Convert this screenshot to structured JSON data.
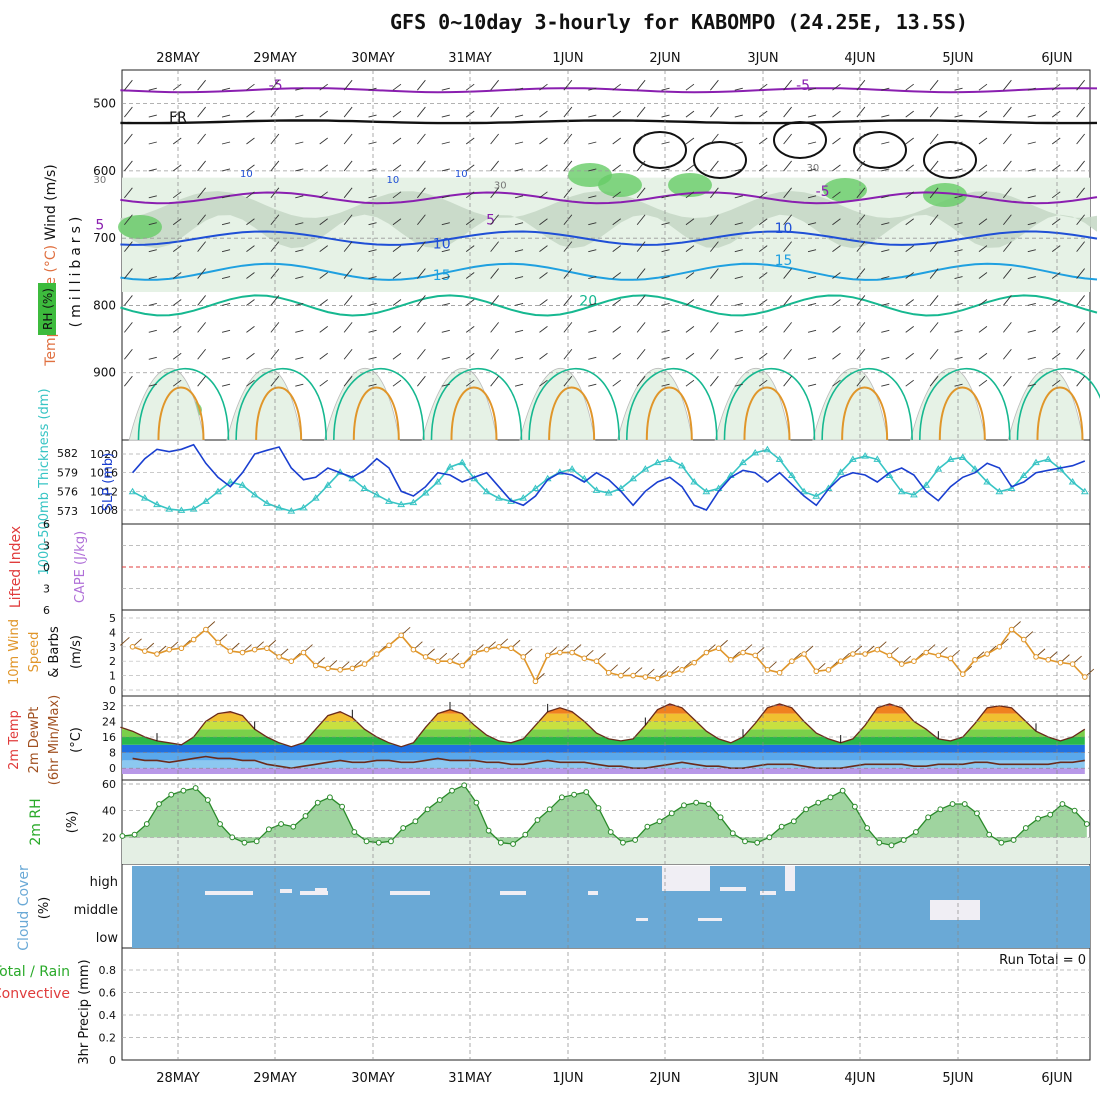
{
  "title": "GFS 0~10day 3-hourly for KABOMPO (24.25E, 13.5S)",
  "date_labels": [
    "28MAY",
    "29MAY",
    "30MAY",
    "31MAY",
    "1JUN",
    "2JUN",
    "3JUN",
    "4JUN",
    "5JUN",
    "6JUN"
  ],
  "colors": {
    "rh_light": "#e6f2e6",
    "rh_mid": "#c6d8c6",
    "rh_dark": "#a9bfa9",
    "rh_green": "#66cc66",
    "temp_purple": "#8a1fb0",
    "temp_blue": "#1f4fd6",
    "temp_cyan": "#1fa0e0",
    "temp_teal": "#16b890",
    "temp_orange": "#e0962a",
    "temp_magenta": "#e0208a",
    "slp": "#1a3fd0",
    "thick": "#37c4c4",
    "wind10": "#e0962a",
    "li": "#e03c3c",
    "cape": "#b070d8",
    "cloud": "#6aa9d6"
  },
  "chart_data": [
    {
      "type": "heatmap",
      "panel": "upper-air",
      "ylabel_parts": [
        "Wind (m/s)",
        "Temperature (°C)",
        "RH (%)",
        "(millibars)"
      ],
      "yticks": [
        500,
        600,
        700,
        800,
        900
      ],
      "ylim": [
        1000,
        450
      ],
      "contour_labels": [
        {
          "text": "-5",
          "x": "29.0",
          "p": 480
        },
        {
          "text": "-5",
          "x": "3.4",
          "p": 480
        },
        {
          "text": "FR",
          "x": "28.0",
          "p": 527
        },
        {
          "text": "-5",
          "x": "3.6",
          "p": 637
        },
        {
          "text": "5",
          "x": "27.2",
          "p": 687
        },
        {
          "text": "5",
          "x": "31.2",
          "p": 680
        },
        {
          "text": "10",
          "x": "30.7",
          "p": 715
        },
        {
          "text": "10",
          "x": "3.2",
          "p": 692
        },
        {
          "text": "15",
          "x": "30.7",
          "p": 762
        },
        {
          "text": "15",
          "x": "3.2",
          "p": 740
        },
        {
          "text": "20",
          "x": "1.2",
          "p": 800
        },
        {
          "text": "10",
          "x": "28.7",
          "p": 609
        },
        {
          "text": "30",
          "x": "27.2",
          "p": 618
        },
        {
          "text": "10",
          "x": "30.9",
          "p": 609
        },
        {
          "text": "30",
          "x": "31.3",
          "p": 626
        },
        {
          "text": "30",
          "x": "3.5",
          "p": 600
        },
        {
          "text": "10",
          "x": "30.2",
          "p": 618
        }
      ]
    },
    {
      "type": "line",
      "panel": "slp-thickness",
      "ylabel_left": "1000-500mb Thickness (dm)",
      "ylabel_right": "SLP (mb)",
      "thickness_ticks": [
        573,
        576,
        579,
        582
      ],
      "slp_ticks": [
        1008,
        1012,
        1016,
        1020
      ],
      "series": [
        {
          "name": "SLP (mb)",
          "values": [
            1014.5,
            1016,
            1019,
            1021,
            1020.5,
            1021,
            1022,
            1018,
            1015,
            1013,
            1016,
            1020,
            1020.8,
            1021.5,
            1017,
            1014.5,
            1015,
            1017,
            1016,
            1015,
            1016.5,
            1019,
            1017,
            1012,
            1011,
            1013,
            1016,
            1015.5,
            1014,
            1015,
            1016,
            1013,
            1010,
            1009,
            1011,
            1014.5,
            1016,
            1015.5,
            1014,
            1016,
            1014.5,
            1012,
            1009,
            1012,
            1014,
            1015,
            1013,
            1009,
            1008,
            1012,
            1015,
            1016.5,
            1016,
            1014,
            1016,
            1013.5,
            1011,
            1009,
            1012.5,
            1015,
            1016,
            1015.5,
            1014,
            1016,
            1017,
            1015.5,
            1012,
            1010,
            1013,
            1015,
            1016,
            1018,
            1017,
            1013,
            1014,
            1016,
            1016.5,
            1017,
            1017.5,
            1018.5
          ]
        },
        {
          "name": "Thickness (dm)",
          "values": [
            576.5,
            576,
            575,
            574,
            573.3,
            573.1,
            573.3,
            574.5,
            576,
            577.5,
            577,
            575.5,
            574.2,
            573.5,
            573,
            573.5,
            575,
            577,
            579,
            578,
            576.5,
            575.5,
            574.5,
            574,
            574.3,
            575.8,
            577.5,
            579.8,
            580.5,
            578,
            576,
            575,
            574.5,
            575,
            576.5,
            578,
            579,
            579.5,
            578,
            576.2,
            575.8,
            576.5,
            578,
            579.5,
            580.5,
            581,
            580,
            577.5,
            576,
            576.5,
            578.5,
            580.5,
            582,
            582.5,
            581,
            578.5,
            576,
            575.3,
            576.5,
            579,
            581,
            581.5,
            581,
            578.5,
            576,
            575.5,
            577,
            579.5,
            581,
            581.3,
            579.5,
            577.5,
            576,
            576.5,
            578.5,
            580.5,
            581,
            579.5,
            577.5,
            576
          ]
        }
      ]
    },
    {
      "type": "line",
      "panel": "stability",
      "ylabel_parts": [
        "Lifted Index",
        "CAPE (J/kg)"
      ],
      "yticks": [
        -6,
        -3,
        0,
        3,
        6
      ],
      "li_values": [],
      "cape_values": []
    },
    {
      "type": "line",
      "panel": "wind10m",
      "ylabel_parts": [
        "10m Wind",
        "Speed",
        "& Barbs",
        "(m/s)"
      ],
      "yticks": [
        0,
        1,
        2,
        3,
        4,
        5
      ],
      "series": [
        {
          "name": "10m Wind Speed",
          "values": [
            3.1,
            3.0,
            2.7,
            2.5,
            2.8,
            2.9,
            3.5,
            4.2,
            3.3,
            2.7,
            2.6,
            2.8,
            2.9,
            2.3,
            2.0,
            2.6,
            1.7,
            1.5,
            1.4,
            1.5,
            1.8,
            2.5,
            3.1,
            3.8,
            2.8,
            2.3,
            2.0,
            2.0,
            1.7,
            2.6,
            2.8,
            3.0,
            2.9,
            2.3,
            0.6,
            2.4,
            2.6,
            2.6,
            2.2,
            2.0,
            1.2,
            1.0,
            1.0,
            0.9,
            0.8,
            1.1,
            1.4,
            1.9,
            2.6,
            2.9,
            2.1,
            2.6,
            2.4,
            1.4,
            1.2,
            2.0,
            2.5,
            1.3,
            1.4,
            2.0,
            2.5,
            2.5,
            2.8,
            2.4,
            1.8,
            2.0,
            2.6,
            2.4,
            2.2,
            1.1,
            2.1,
            2.5,
            3.0,
            4.2,
            3.5,
            2.3,
            2.1,
            1.9,
            1.8,
            0.9,
            2.0,
            3.6
          ]
        }
      ]
    },
    {
      "type": "area",
      "panel": "temp2m",
      "ylabel_parts": [
        "2m Temp",
        "2m DewPt",
        "(6hr Min/Max)",
        "(°C)"
      ],
      "yticks": [
        0,
        8,
        16,
        24,
        32
      ],
      "series": [
        {
          "name": "2m Temp",
          "values": [
            21,
            19,
            16,
            14,
            13,
            12,
            16,
            24,
            28,
            29,
            27,
            20,
            16,
            13,
            11,
            13,
            20,
            27,
            29,
            26,
            20,
            16,
            13,
            11,
            13,
            21,
            28,
            30,
            28,
            22,
            17,
            14,
            13,
            15,
            22,
            29,
            31,
            29,
            24,
            18,
            15,
            14,
            15,
            22,
            30,
            33,
            31,
            25,
            19,
            15,
            13,
            16,
            23,
            31,
            33,
            31,
            24,
            18,
            15,
            13,
            15,
            22,
            31,
            33,
            31,
            24,
            20,
            15,
            14,
            16,
            23,
            31,
            32,
            31,
            25,
            19,
            16,
            14,
            16,
            20
          ]
        },
        {
          "name": "2m DewPt",
          "values": [
            6,
            5,
            4,
            4,
            3,
            4,
            5,
            6,
            5,
            5,
            4,
            4,
            2,
            1,
            0,
            1,
            2,
            3,
            4,
            3,
            3,
            4,
            4,
            3,
            3,
            4,
            5,
            4,
            4,
            4,
            3,
            3,
            2,
            2,
            3,
            4,
            3,
            3,
            3,
            2,
            1,
            1,
            0,
            0,
            1,
            2,
            3,
            2,
            1,
            1,
            0,
            0,
            1,
            2,
            2,
            2,
            1,
            0,
            0,
            0,
            1,
            2,
            2,
            2,
            2,
            1,
            1,
            2,
            2,
            2,
            3,
            3,
            2,
            2,
            2,
            2,
            2,
            3,
            3,
            4
          ]
        }
      ]
    },
    {
      "type": "area",
      "panel": "rh2m",
      "ylabel_parts": [
        "2m RH",
        "(%)"
      ],
      "yticks": [
        20,
        40,
        60
      ],
      "series": [
        {
          "name": "2m RH",
          "values": [
            21,
            22,
            30,
            45,
            52,
            55,
            57,
            48,
            30,
            20,
            16,
            17,
            26,
            30,
            28,
            36,
            46,
            50,
            43,
            24,
            17,
            16,
            17,
            27,
            32,
            41,
            48,
            55,
            59,
            46,
            25,
            16,
            15,
            22,
            33,
            41,
            50,
            52,
            54,
            42,
            24,
            16,
            18,
            28,
            32,
            38,
            44,
            46,
            45,
            35,
            23,
            17,
            16,
            20,
            28,
            32,
            41,
            46,
            50,
            55,
            43,
            27,
            16,
            14,
            18,
            24,
            35,
            41,
            45,
            45,
            38,
            22,
            16,
            18,
            27,
            34,
            37,
            45,
            40,
            30,
            18,
            15,
            15,
            24,
            35,
            42,
            48,
            45
          ]
        }
      ]
    },
    {
      "type": "bar",
      "panel": "cloud",
      "ylabel_parts": [
        "Cloud Cover",
        "(%)"
      ],
      "levels": [
        "high",
        "middle",
        "low"
      ]
    },
    {
      "type": "bar",
      "panel": "precip",
      "ylabel_parts": [
        "Total / Rain",
        "Convective",
        "3hr Precip (mm)"
      ],
      "yticks": [
        0,
        0.2,
        0.4,
        0.6,
        0.8
      ],
      "run_total": "Run Total = 0",
      "values": []
    }
  ]
}
